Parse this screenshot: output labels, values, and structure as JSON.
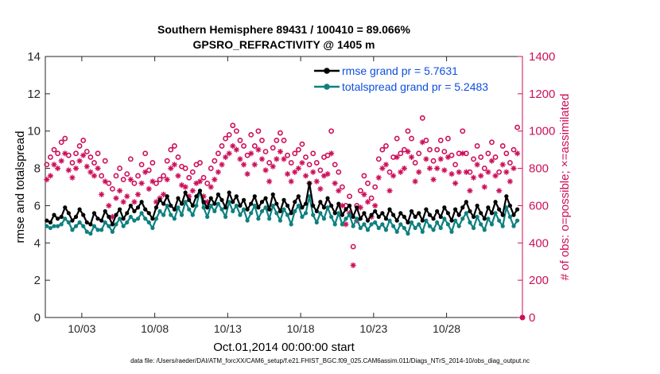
{
  "chart_data": {
    "type": "line",
    "title": "Southern Hemisphere 89431 / 100410 = 89.066%",
    "subtitle": "GPSRO_REFRACTIVITY @ 1405 m",
    "xlabel": "Oct.01,2014 00:00:00 start",
    "ylabel": "rmse and totalspread",
    "y2label": "# of obs: o=possible; ×=assimilated",
    "xlim": [
      0.5,
      33.2
    ],
    "ylim": [
      0,
      14
    ],
    "y2lim": [
      0,
      1400
    ],
    "x_tick_values": [
      3,
      8,
      13,
      18,
      23,
      28
    ],
    "x_tick_labels": [
      "10/03",
      "10/08",
      "10/13",
      "10/18",
      "10/23",
      "10/28"
    ],
    "y_ticks": [
      "0",
      "2",
      "4",
      "6",
      "8",
      "10",
      "12",
      "14"
    ],
    "y2_ticks": [
      "0",
      "200",
      "400",
      "600",
      "800",
      "1000",
      "1200",
      "1400"
    ],
    "legend": [
      "rmse grand pr = 5.7631",
      "totalspread grand pr = 5.2483"
    ],
    "legend_position": "top-right",
    "colors": {
      "rmse": "#000000",
      "totalspread": "#0f8080",
      "obs": "#cc0f5a",
      "legend_text": "#0c4fe0"
    },
    "x": [
      0.6,
      0.85,
      1.1,
      1.35,
      1.6,
      1.85,
      2.1,
      2.35,
      2.6,
      2.85,
      3.1,
      3.35,
      3.6,
      3.85,
      4.1,
      4.35,
      4.6,
      4.85,
      5.1,
      5.35,
      5.6,
      5.85,
      6.1,
      6.35,
      6.6,
      6.85,
      7.1,
      7.35,
      7.6,
      7.85,
      8.1,
      8.35,
      8.6,
      8.85,
      9.1,
      9.35,
      9.6,
      9.85,
      10.1,
      10.35,
      10.6,
      10.85,
      11.1,
      11.35,
      11.6,
      11.85,
      12.1,
      12.35,
      12.6,
      12.85,
      13.1,
      13.35,
      13.6,
      13.85,
      14.1,
      14.35,
      14.6,
      14.85,
      15.1,
      15.35,
      15.6,
      15.85,
      16.1,
      16.35,
      16.6,
      16.85,
      17.1,
      17.35,
      17.6,
      17.85,
      18.1,
      18.35,
      18.6,
      18.85,
      19.1,
      19.35,
      19.6,
      19.85,
      20.1,
      20.35,
      20.6,
      20.85,
      21.1,
      21.35,
      21.6,
      21.85,
      22.1,
      22.35,
      22.6,
      22.85,
      23.1,
      23.35,
      23.6,
      23.85,
      24.1,
      24.35,
      24.6,
      24.85,
      25.1,
      25.35,
      25.6,
      25.85,
      26.1,
      26.35,
      26.6,
      26.85,
      27.1,
      27.35,
      27.6,
      27.85,
      28.1,
      28.35,
      28.6,
      28.85,
      29.1,
      29.35,
      29.6,
      29.85,
      30.1,
      30.35,
      30.6,
      30.85,
      31.1,
      31.35,
      31.6,
      31.85,
      32.1,
      32.35,
      32.6,
      32.85
    ],
    "series": [
      {
        "name": "rmse",
        "marker": "filled-circle",
        "values": [
          5.2,
          5.1,
          5.5,
          5.3,
          5.4,
          5.9,
          5.6,
          5.2,
          5.4,
          5.8,
          5.5,
          5.1,
          5.0,
          5.6,
          5.3,
          5.2,
          5.7,
          5.4,
          5.0,
          5.5,
          5.8,
          5.3,
          5.6,
          6.0,
          5.7,
          5.9,
          6.2,
          5.8,
          5.6,
          5.3,
          5.9,
          6.3,
          6.1,
          6.5,
          6.0,
          5.8,
          6.4,
          6.1,
          6.7,
          6.3,
          6.0,
          6.5,
          6.8,
          6.2,
          5.9,
          6.4,
          6.1,
          6.6,
          6.3,
          5.9,
          6.7,
          6.2,
          6.5,
          6.0,
          6.3,
          5.8,
          6.1,
          6.5,
          5.9,
          6.2,
          6.4,
          5.8,
          6.6,
          6.1,
          5.7,
          6.3,
          6.0,
          5.6,
          6.2,
          6.5,
          5.9,
          6.1,
          7.2,
          6.0,
          5.7,
          6.2,
          5.9,
          6.4,
          6.0,
          5.6,
          6.1,
          5.5,
          5.8,
          6.0,
          5.4,
          5.9,
          5.3,
          5.6,
          5.2,
          5.5,
          5.7,
          5.4,
          5.6,
          5.3,
          5.8,
          5.5,
          5.2,
          5.6,
          5.4,
          5.1,
          5.7,
          5.4,
          5.6,
          5.2,
          5.8,
          5.5,
          5.3,
          5.7,
          5.4,
          5.9,
          5.6,
          5.2,
          5.8,
          5.5,
          5.9,
          6.2,
          5.7,
          5.4,
          6.0,
          5.6,
          5.3,
          5.9,
          5.6,
          6.2,
          5.8,
          5.5,
          6.5,
          6.0,
          5.5,
          5.8
        ]
      },
      {
        "name": "totalspread",
        "marker": "filled-circle",
        "values": [
          4.9,
          4.8,
          4.9,
          4.9,
          5.0,
          5.3,
          5.1,
          4.7,
          4.9,
          5.1,
          4.9,
          4.6,
          4.5,
          4.9,
          4.7,
          4.7,
          5.1,
          4.9,
          4.6,
          5.0,
          5.3,
          4.9,
          5.1,
          5.4,
          5.2,
          5.3,
          5.6,
          5.3,
          5.1,
          4.8,
          5.3,
          5.7,
          5.5,
          6.0,
          5.5,
          5.3,
          5.9,
          5.5,
          6.2,
          5.8,
          5.5,
          6.0,
          6.8,
          5.9,
          5.4,
          6.0,
          5.7,
          6.1,
          5.8,
          5.4,
          6.2,
          5.7,
          6.0,
          5.5,
          5.8,
          5.2,
          5.6,
          6.0,
          5.3,
          5.7,
          5.9,
          5.3,
          6.0,
          5.6,
          5.2,
          5.8,
          5.5,
          5.0,
          5.7,
          6.0,
          5.4,
          5.6,
          6.5,
          5.5,
          5.1,
          5.6,
          5.3,
          5.9,
          5.4,
          5.0,
          5.6,
          5.0,
          5.3,
          5.5,
          4.9,
          5.3,
          4.8,
          5.0,
          4.7,
          5.0,
          5.1,
          4.8,
          5.0,
          4.7,
          5.2,
          4.9,
          4.6,
          5.0,
          4.8,
          4.5,
          5.1,
          4.8,
          5.0,
          4.6,
          5.2,
          4.9,
          4.7,
          5.1,
          4.8,
          5.3,
          5.0,
          4.6,
          5.2,
          4.9,
          5.3,
          5.6,
          5.1,
          4.8,
          5.4,
          5.0,
          4.7,
          5.3,
          5.0,
          5.6,
          5.2,
          4.9,
          5.9,
          5.4,
          4.9,
          5.2
        ]
      },
      {
        "name": "obs possible",
        "marker": "open-circle",
        "axis": "right",
        "values": [
          820,
          860,
          900,
          880,
          940,
          960,
          870,
          830,
          880,
          920,
          950,
          890,
          860,
          830,
          880,
          760,
          840,
          720,
          690,
          760,
          800,
          740,
          770,
          850,
          720,
          760,
          820,
          880,
          790,
          830,
          720,
          740,
          760,
          840,
          900,
          920,
          860,
          810,
          800,
          750,
          780,
          820,
          830,
          750,
          720,
          800,
          840,
          880,
          920,
          960,
          980,
          1030,
          1000,
          950,
          920,
          870,
          980,
          920,
          1000,
          950,
          890,
          830,
          910,
          950,
          990,
          950,
          870,
          830,
          880,
          900,
          930,
          860,
          820,
          880,
          830,
          790,
          860,
          870,
          1000,
          820,
          780,
          700,
          600,
          650,
          380,
          600,
          680,
          760,
          720,
          640,
          700,
          850,
          900,
          920,
          780,
          860,
          960,
          880,
          900,
          1000,
          960,
          830,
          880,
          1070,
          950,
          900,
          840,
          900,
          950,
          890,
          960,
          870,
          820,
          880,
          1000,
          880,
          780,
          850,
          920,
          860,
          800,
          880,
          940,
          860,
          780,
          920,
          880,
          830,
          900,
          1020
        ]
      },
      {
        "name": "obs assimilated",
        "marker": "asterisk",
        "axis": "right",
        "values": [
          740,
          760,
          820,
          800,
          840,
          880,
          790,
          750,
          800,
          840,
          870,
          810,
          780,
          760,
          800,
          660,
          730,
          600,
          540,
          640,
          680,
          620,
          650,
          740,
          620,
          660,
          720,
          780,
          690,
          730,
          620,
          640,
          660,
          740,
          800,
          820,
          760,
          710,
          700,
          650,
          680,
          720,
          730,
          650,
          620,
          700,
          740,
          780,
          820,
          860,
          880,
          920,
          900,
          850,
          820,
          770,
          880,
          820,
          900,
          850,
          790,
          730,
          810,
          850,
          890,
          850,
          770,
          730,
          780,
          800,
          830,
          760,
          720,
          780,
          730,
          690,
          760,
          770,
          880,
          720,
          680,
          600,
          500,
          560,
          280,
          520,
          590,
          660,
          620,
          540,
          600,
          750,
          800,
          820,
          680,
          760,
          860,
          780,
          800,
          890,
          860,
          730,
          780,
          940,
          850,
          800,
          740,
          800,
          850,
          790,
          860,
          770,
          720,
          780,
          880,
          780,
          680,
          750,
          820,
          760,
          700,
          780,
          840,
          760,
          680,
          820,
          780,
          730,
          800,
          880
        ]
      }
    ]
  },
  "footer": "data file: /Users/raeder/DAI/ATM_forcXX/CAM6_setup/f.e21.FHIST_BGC.f09_025.CAM6assim.011/Diags_NTrS_2014-10/obs_diag_output.nc"
}
